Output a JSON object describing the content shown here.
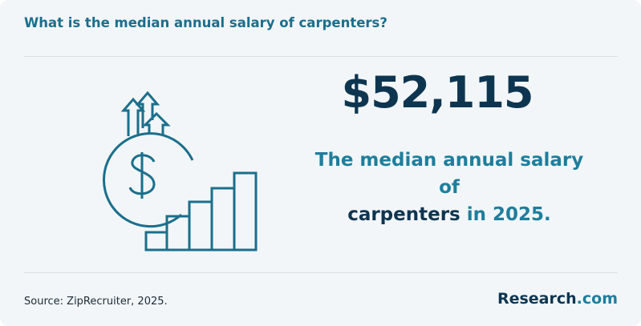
{
  "header": {
    "title": "What is the median annual salary of carpenters?"
  },
  "stat": {
    "value": "$52,115",
    "description": {
      "lead": "The median annual salary of",
      "subject": "carpenters",
      "tail": "in 2025."
    }
  },
  "footer": {
    "source": "Source: ZipRecruiter, 2025.",
    "brand": {
      "name": "Research",
      "suffix": ".com"
    }
  }
}
